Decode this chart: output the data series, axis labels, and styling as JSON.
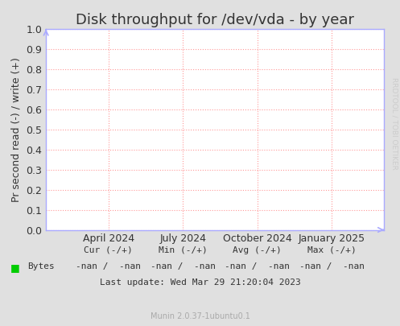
{
  "title": "Disk throughput for /dev/vda - by year",
  "ylabel": "Pr second read (-) / write (+)",
  "ylim": [
    0.0,
    1.0
  ],
  "yticks": [
    0.0,
    0.1,
    0.2,
    0.3,
    0.4,
    0.5,
    0.6,
    0.7,
    0.8,
    0.9,
    1.0
  ],
  "xtick_labels": [
    "April 2024",
    "July 2024",
    "October 2024",
    "January 2025"
  ],
  "xtick_positions": [
    0.185,
    0.405,
    0.625,
    0.845
  ],
  "bg_color": "#e0e0e0",
  "plot_bg_color": "#ffffff",
  "grid_color": "#ff9999",
  "axis_color": "#aaaaff",
  "legend_label": "Bytes",
  "legend_color": "#00cc00",
  "footer_last_update": "Last update: Wed Mar 29 21:20:04 2023",
  "footer_munin": "Munin 2.0.37-1ubuntu0.1",
  "watermark": "RRDTOOL / TOBI OETIKER",
  "title_fontsize": 13,
  "ylabel_fontsize": 9,
  "tick_fontsize": 9,
  "footer_fontsize": 8,
  "watermark_fontsize": 6.5
}
